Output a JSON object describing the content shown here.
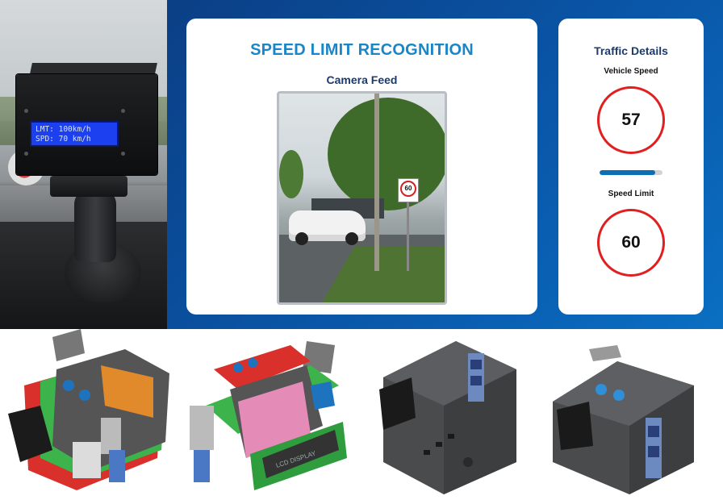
{
  "photo": {
    "lcd_line1": "LMT: 100km/h",
    "lcd_line2": "SPD: 70 km/h"
  },
  "dashboard": {
    "title": "SPEED LIMIT RECOGNITION",
    "camera_feed_label": "Camera Feed",
    "sign_value": "60",
    "traffic": {
      "title": "Traffic Details",
      "vehicle_speed_label": "Vehicle Speed",
      "vehicle_speed": "57",
      "speed_bar_fraction": 0.88,
      "speed_limit_label": "Speed Limit",
      "speed_limit": "60"
    },
    "colors": {
      "banner": "#0a56a8",
      "title": "#1a86c8",
      "gauge_ring": "#e02020",
      "bar_fill": "#0b6fb3"
    }
  },
  "renders": {
    "lcd_label": "LCD DISPLAY",
    "count": 4
  }
}
